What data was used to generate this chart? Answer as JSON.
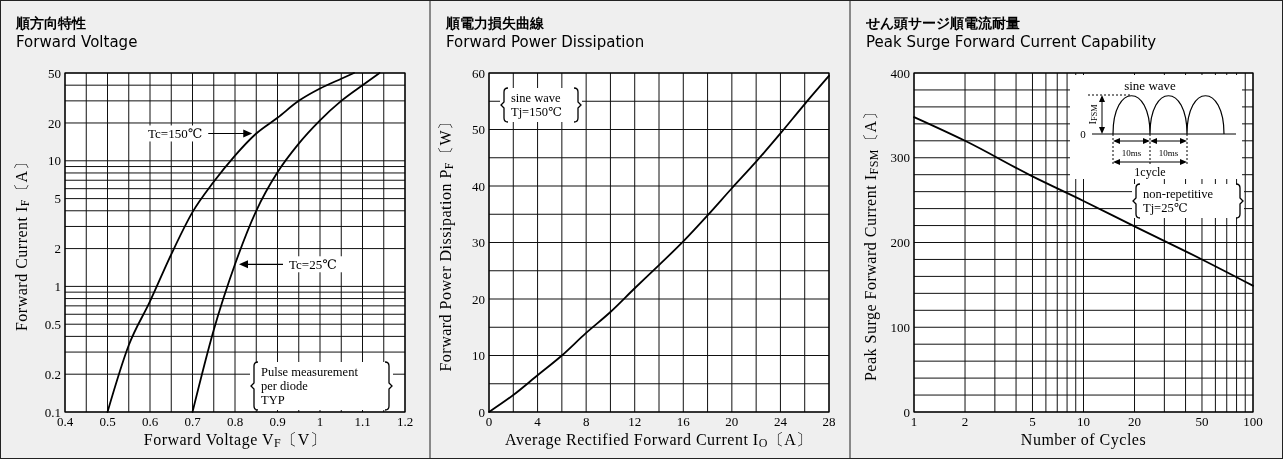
{
  "chart_data": [
    {
      "type": "line",
      "title": "順方向特性",
      "subtitle": "Forward Voltage",
      "xlabel": "Forward Voltage V$_{F}$〔V〕",
      "ylabel": "Forward Current I$_{F}$〔A〕",
      "log": "y",
      "grid": true,
      "xlim": [
        0.4,
        1.2
      ],
      "ylim": [
        0.1,
        50
      ],
      "xticks": [
        0.4,
        {
          "value": 0.45,
          "label": null
        },
        0.5,
        {
          "value": 0.55,
          "label": null
        },
        0.6,
        {
          "value": 0.65,
          "label": null
        },
        0.7,
        {
          "value": 0.75,
          "label": null
        },
        0.8,
        {
          "value": 0.85,
          "label": null
        },
        0.9,
        {
          "value": 0.95,
          "label": null
        },
        1,
        {
          "value": 1.05,
          "label": null
        },
        1.1,
        {
          "value": 1.15,
          "label": null
        },
        1.2
      ],
      "yticks": [
        0.1,
        0.2,
        {
          "value": 0.3,
          "label": null
        },
        {
          "value": 0.4,
          "label": null
        },
        0.5,
        {
          "value": 0.6,
          "label": null
        },
        {
          "value": 0.7,
          "label": null
        },
        {
          "value": 0.8,
          "label": null
        },
        {
          "value": 0.9,
          "label": null
        },
        1,
        2,
        {
          "value": 3,
          "label": null
        },
        {
          "value": 4,
          "label": null
        },
        5,
        {
          "value": 6,
          "label": null
        },
        {
          "value": 7,
          "label": null
        },
        {
          "value": 8,
          "label": null
        },
        {
          "value": 9,
          "label": null
        },
        10,
        20,
        {
          "value": 30,
          "label": null
        },
        {
          "value": 40,
          "label": null
        },
        50
      ],
      "series": [
        {
          "name": "Tc=150℃",
          "color": "#000000",
          "x": [
            0.5,
            0.55,
            0.6,
            0.65,
            0.7,
            0.75,
            0.8,
            0.85,
            0.9,
            0.95,
            1.0,
            1.05,
            1.08
          ],
          "values": [
            0.1,
            0.34,
            0.76,
            1.8,
            3.9,
            6.8,
            11,
            16.5,
            22,
            30,
            37.6,
            45,
            50
          ]
        },
        {
          "name": "Tc=25℃",
          "color": "#000000",
          "x": [
            0.7,
            0.75,
            0.8,
            0.85,
            0.9,
            0.95,
            1.0,
            1.05,
            1.1,
            1.14
          ],
          "values": [
            0.1,
            0.45,
            1.5,
            4.0,
            8.1,
            13.7,
            21,
            30,
            40,
            50
          ]
        }
      ],
      "annotations": [
        "Pulse measurement\nper diode\nTYP"
      ]
    },
    {
      "type": "line",
      "title": "順電力損失曲線",
      "subtitle": "Forward Power Dissipation",
      "xlabel": "Average Rectified Forward Current I$_{O}$〔A〕",
      "ylabel": "Forward Power Dissipation P$_{F}$〔W〕",
      "grid": true,
      "xlim": [
        0,
        28
      ],
      "ylim": [
        0,
        60
      ],
      "xticks": [
        0,
        {
          "value": 2,
          "label": null
        },
        4,
        {
          "value": 6,
          "label": null
        },
        8,
        {
          "value": 10,
          "label": null
        },
        12,
        {
          "value": 14,
          "label": null
        },
        16,
        {
          "value": 18,
          "label": null
        },
        20,
        {
          "value": 22,
          "label": null
        },
        24,
        {
          "value": 26,
          "label": null
        },
        28
      ],
      "yticks": [
        0,
        {
          "value": 5,
          "label": null
        },
        10,
        {
          "value": 15,
          "label": null
        },
        20,
        {
          "value": 25,
          "label": null
        },
        30,
        {
          "value": 35,
          "label": null
        },
        40,
        {
          "value": 45,
          "label": null
        },
        50,
        {
          "value": 55,
          "label": null
        },
        60
      ],
      "series": [
        {
          "color": "#000000",
          "x": [
            0,
            2,
            4,
            6,
            8,
            10,
            12,
            14,
            16,
            18,
            20,
            22,
            24,
            26,
            28
          ],
          "values": [
            0,
            3,
            6.5,
            10,
            14,
            17.7,
            21.9,
            26,
            30.2,
            34.8,
            39.6,
            44.3,
            49.3,
            54.5,
            59.5
          ]
        }
      ],
      "annotations": [
        "sine wave\nTj=150℃"
      ]
    },
    {
      "type": "line",
      "title": "せん頭サージ順電流耐量",
      "subtitle": "Peak Surge Forward Current Capability",
      "xlabel": "Number of Cycles",
      "ylabel": "Peak Surge Forward Current I$_{FSM}$〔A〕",
      "log": "x",
      "grid": true,
      "xlim": [
        1,
        100
      ],
      "ylim": [
        0,
        400
      ],
      "xticks": [
        1,
        2,
        {
          "value": 3,
          "label": null
        },
        {
          "value": 4,
          "label": null
        },
        5,
        {
          "value": 6,
          "label": null
        },
        {
          "value": 7,
          "label": null
        },
        {
          "value": 8,
          "label": null
        },
        {
          "value": 9,
          "label": null
        },
        10,
        20,
        {
          "value": 30,
          "label": null
        },
        {
          "value": 40,
          "label": null
        },
        50,
        {
          "value": 60,
          "label": null
        },
        {
          "value": 70,
          "label": null
        },
        {
          "value": 80,
          "label": null
        },
        {
          "value": 90,
          "label": null
        },
        100
      ],
      "yticks": [
        0,
        {
          "value": 20,
          "label": null
        },
        {
          "value": 40,
          "label": null
        },
        {
          "value": 60,
          "label": null
        },
        {
          "value": 80,
          "label": null
        },
        100,
        {
          "value": 120,
          "label": null
        },
        {
          "value": 140,
          "label": null
        },
        {
          "value": 160,
          "label": null
        },
        {
          "value": 180,
          "label": null
        },
        200,
        {
          "value": 220,
          "label": null
        },
        {
          "value": 240,
          "label": null
        },
        {
          "value": 260,
          "label": null
        },
        {
          "value": 280,
          "label": null
        },
        300,
        {
          "value": 320,
          "label": null
        },
        {
          "value": 340,
          "label": null
        },
        {
          "value": 360,
          "label": null
        },
        {
          "value": 380,
          "label": null
        },
        400
      ],
      "series": [
        {
          "color": "#000000",
          "x": [
            1,
            2,
            5,
            10,
            20,
            50,
            100
          ],
          "values": [
            348,
            320,
            278,
            249,
            219,
            180,
            149
          ]
        }
      ],
      "annotations": [
        "sine wave",
        "I$_{FSM}$",
        "0",
        "10ms",
        "10ms",
        "1cycle",
        "non-repetitive\nTj=25℃"
      ]
    }
  ]
}
